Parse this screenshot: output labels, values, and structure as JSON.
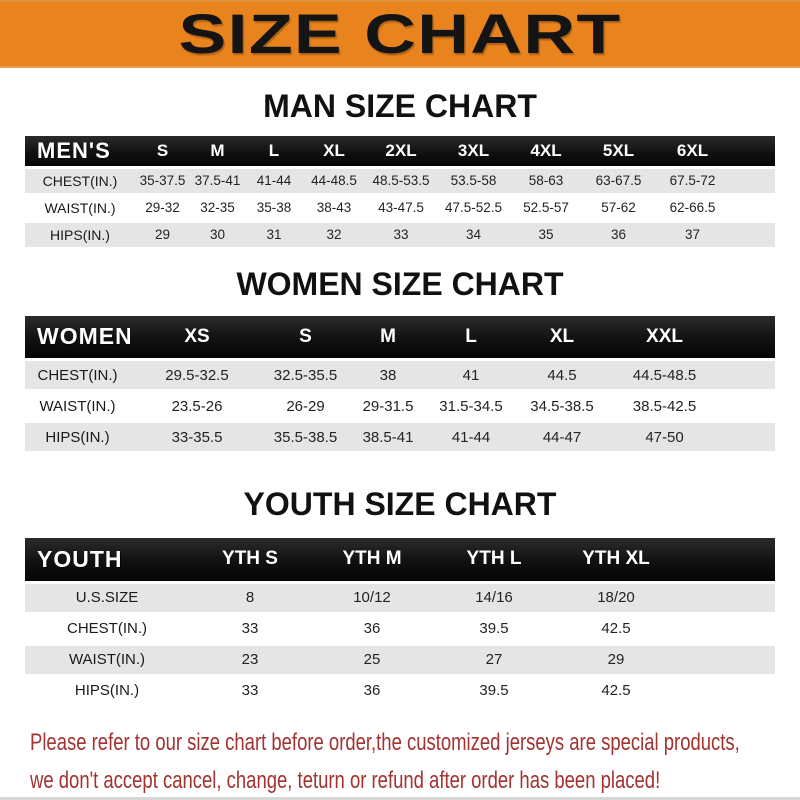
{
  "banner": {
    "title": "SIZE CHART",
    "background_color": "#E8831E",
    "text_color": "#141414"
  },
  "sections": [
    {
      "heading": "MAN SIZE CHART",
      "label": "MEN'S",
      "columns": [
        "S",
        "M",
        "L",
        "XL",
        "2XL",
        "3XL",
        "4XL",
        "5XL",
        "6XL"
      ],
      "rows": [
        {
          "label": "CHEST(IN.)",
          "values": [
            "35-37.5",
            "37.5-41",
            "41-44",
            "44-48.5",
            "48.5-53.5",
            "53.5-58",
            "58-63",
            "63-67.5",
            "67.5-72"
          ]
        },
        {
          "label": "WAIST(IN.)",
          "values": [
            "29-32",
            "32-35",
            "35-38",
            "38-43",
            "43-47.5",
            "47.5-52.5",
            "52.5-57",
            "57-62",
            "62-66.5"
          ]
        },
        {
          "label": "HIPS(IN.)",
          "values": [
            "29",
            "30",
            "31",
            "32",
            "33",
            "34",
            "35",
            "36",
            "37"
          ]
        }
      ]
    },
    {
      "heading": "WOMEN SIZE CHART",
      "label": "WOMEN'S",
      "columns": [
        "XS",
        "S",
        "M",
        "L",
        "XL",
        "XXL"
      ],
      "rows": [
        {
          "label": "CHEST(IN.)",
          "values": [
            "29.5-32.5",
            "32.5-35.5",
            "38",
            "41",
            "44.5",
            "44.5-48.5"
          ]
        },
        {
          "label": "WAIST(IN.)",
          "values": [
            "23.5-26",
            "26-29",
            "29-31.5",
            "31.5-34.5",
            "34.5-38.5",
            "38.5-42.5"
          ]
        },
        {
          "label": "HIPS(IN.)",
          "values": [
            "33-35.5",
            "35.5-38.5",
            "38.5-41",
            "41-44",
            "44-47",
            "47-50"
          ]
        }
      ]
    },
    {
      "heading": "YOUTH SIZE CHART",
      "label": "YOUTH",
      "columns": [
        "YTH S",
        "YTH M",
        "YTH L",
        "YTH XL"
      ],
      "rows": [
        {
          "label": "U.S.SIZE",
          "values": [
            "8",
            "10/12",
            "14/16",
            "18/20"
          ]
        },
        {
          "label": "CHEST(IN.)",
          "values": [
            "33",
            "36",
            "39.5",
            "42.5"
          ]
        },
        {
          "label": "WAIST(IN.)",
          "values": [
            "23",
            "25",
            "27",
            "29"
          ]
        },
        {
          "label": "HIPS(IN.)",
          "values": [
            "33",
            "36",
            "39.5",
            "42.5"
          ]
        }
      ]
    }
  ],
  "footer": {
    "text_color": "#A33331",
    "lines": [
      "Please refer to our size chart before order,the customized jerseys are special products,",
      "we don't accept cancel, change, teturn or refund after order has been placed!"
    ]
  }
}
